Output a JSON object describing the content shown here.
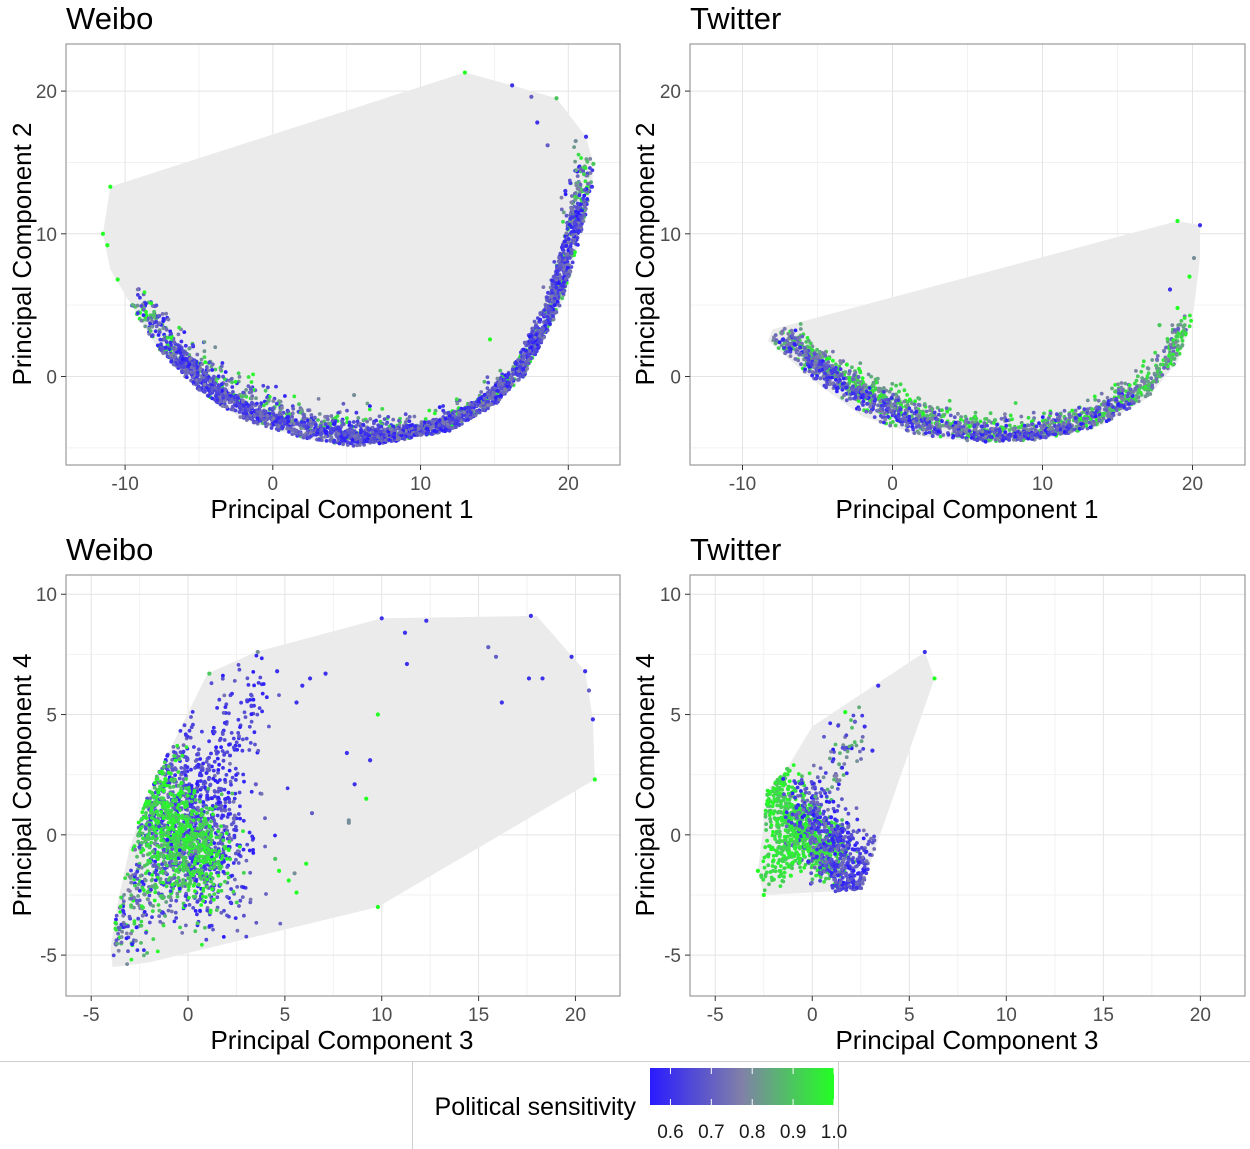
{
  "colors": {
    "low": "#2a1bff",
    "mid": "#8080a8",
    "high": "#22ff22",
    "hull_fill": "#ebebeb",
    "grid_major": "#e4e4e4",
    "grid_minor": "#f2f2f2",
    "panel_border": "#9a9a9a"
  },
  "chart_data": [
    {
      "type": "scatter",
      "title": "Weibo",
      "xlabel": "Principal Component 1",
      "ylabel": "Principal Component 2",
      "xlim": [
        -14,
        23.5
      ],
      "ylim": [
        -6.2,
        23.3
      ],
      "xticks": [
        -10,
        0,
        10,
        20
      ],
      "yticks": [
        0,
        10,
        20
      ],
      "xtick_labels": [
        "-10",
        "0",
        "10",
        "20"
      ],
      "ytick_labels": [
        "0",
        "10",
        "20"
      ],
      "hull": [
        [
          13,
          21.3
        ],
        [
          16.2,
          20.4
        ],
        [
          19.2,
          19.5
        ],
        [
          21.2,
          16.8
        ],
        [
          21.7,
          14.9
        ],
        [
          21.6,
          13.3
        ],
        [
          21,
          10.5
        ],
        [
          19.5,
          5
        ],
        [
          17,
          0
        ],
        [
          15,
          -2
        ],
        [
          12,
          -3.8
        ],
        [
          8,
          -4.6
        ],
        [
          5.5,
          -4.9
        ],
        [
          2,
          -4.3
        ],
        [
          -2,
          -3
        ],
        [
          -5,
          -1
        ],
        [
          -7.8,
          2
        ],
        [
          -9,
          4
        ],
        [
          -11,
          7.5
        ],
        [
          -11.5,
          10
        ],
        [
          -11,
          13.3
        ]
      ],
      "points": [
        [
          13,
          21.3,
          1.0
        ],
        [
          16.2,
          20.4,
          0.6
        ],
        [
          17.5,
          19.6,
          0.7
        ],
        [
          19.2,
          19.5,
          0.9
        ],
        [
          20.5,
          16.5,
          0.8
        ],
        [
          21.2,
          16.8,
          0.6
        ],
        [
          21.7,
          14.9,
          0.9
        ],
        [
          21.6,
          13.3,
          0.6
        ],
        [
          -11,
          13.3,
          1.0
        ],
        [
          -11.5,
          10,
          1.0
        ],
        [
          -11.2,
          9.2,
          1.0
        ],
        [
          -10.5,
          6.8,
          1.0
        ],
        [
          14.7,
          2.6,
          1.0
        ],
        [
          13.4,
          -2.9,
          0.7
        ],
        [
          5.5,
          -1.3,
          0.8
        ],
        [
          18.6,
          16.2,
          0.7
        ],
        [
          17.9,
          17.8,
          0.6
        ],
        [
          19.8,
          13,
          0.6
        ]
      ],
      "bands": [
        {
          "x": [
            -9.6,
            -8.2,
            -7,
            -5.5,
            -4,
            -2,
            0,
            2,
            4,
            6,
            8,
            10,
            12,
            14,
            16,
            17.5,
            18.8,
            19.8,
            20.4,
            20.8,
            21,
            21.2
          ],
          "y": [
            5.0,
            3.5,
            2.2,
            1.0,
            -0.2,
            -1.5,
            -2.6,
            -3.3,
            -3.7,
            -3.9,
            -4.0,
            -3.8,
            -3.3,
            -2.4,
            -1.0,
            0.5,
            2.5,
            5.0,
            7.5,
            10.0,
            12.5,
            14.5
          ],
          "spread": 0.7,
          "ybias": 0.4,
          "count": 1300,
          "color_range": [
            0.55,
            1.0
          ]
        },
        {
          "x": [
            -7.8,
            -6.5,
            -5,
            -3,
            -1,
            1,
            3,
            5,
            7,
            9,
            11,
            13,
            15,
            16.8,
            18.3,
            19.5,
            20.3,
            20.8,
            21
          ],
          "y": [
            1.5,
            0.5,
            -0.8,
            -2.2,
            -3.0,
            -3.6,
            -4.0,
            -4.3,
            -4.4,
            -4.3,
            -4.1,
            -3.6,
            -2.6,
            -1.0,
            1.0,
            3.5,
            6.5,
            9.5,
            12.0
          ],
          "spread": 0.5,
          "ybias": 0.3,
          "count": 1700,
          "color_range": [
            0.55,
            0.78
          ]
        }
      ]
    },
    {
      "type": "scatter",
      "title": "Twitter",
      "xlabel": "Principal Component 1",
      "ylabel": "Principal Component 2",
      "xlim": [
        -13.5,
        23.5
      ],
      "ylim": [
        -6.2,
        23.3
      ],
      "xticks": [
        -10,
        0,
        10,
        20
      ],
      "yticks": [
        0,
        10,
        20
      ],
      "xtick_labels": [
        "-10",
        "0",
        "10",
        "20"
      ],
      "ytick_labels": [
        "0",
        "10",
        "20"
      ],
      "hull": [
        [
          20.5,
          10.6
        ],
        [
          19,
          10.9
        ],
        [
          -8,
          3.3
        ],
        [
          -8.3,
          2.5
        ],
        [
          -5,
          -0.5
        ],
        [
          -2,
          -2.8
        ],
        [
          2,
          -4.2
        ],
        [
          6,
          -4.6
        ],
        [
          10,
          -4.4
        ],
        [
          14,
          -3.4
        ],
        [
          17,
          -1.5
        ],
        [
          19,
          1
        ],
        [
          20,
          4
        ],
        [
          20.5,
          8.3
        ]
      ],
      "points": [
        [
          20.5,
          10.6,
          0.6
        ],
        [
          19,
          10.9,
          1.0
        ],
        [
          20.1,
          8.3,
          0.8
        ],
        [
          18.5,
          6.1,
          0.6
        ],
        [
          19,
          4.8,
          1.0
        ],
        [
          17.8,
          3.6,
          0.9
        ],
        [
          19.8,
          7.0,
          1.0
        ]
      ],
      "bands": [
        {
          "x": [
            -7.5,
            -6,
            -4.5,
            -3,
            -1.5,
            0,
            1.5,
            3,
            5,
            7,
            9,
            11,
            13,
            15,
            16.5,
            17.8,
            18.8,
            19.4
          ],
          "y": [
            2.8,
            1.8,
            0.7,
            -0.3,
            -1.3,
            -2.1,
            -2.8,
            -3.3,
            -3.7,
            -4.0,
            -4.0,
            -3.6,
            -3.0,
            -2.0,
            -1.0,
            0.2,
            1.8,
            3.5
          ],
          "spread": 0.55,
          "ybias": 0.4,
          "count": 1300,
          "color_range": [
            0.7,
            1.0
          ]
        },
        {
          "x": [
            -7,
            -5.5,
            -4,
            -2.5,
            -1,
            0.5,
            2,
            4,
            6,
            8,
            10,
            12,
            14,
            16
          ],
          "y": [
            2.2,
            1.0,
            0.0,
            -1.2,
            -2.2,
            -2.9,
            -3.4,
            -3.8,
            -4.2,
            -4.3,
            -4.0,
            -3.5,
            -2.6,
            -1.4
          ],
          "spread": 0.45,
          "ybias": 0.2,
          "count": 700,
          "color_range": [
            0.55,
            0.8
          ]
        }
      ]
    },
    {
      "type": "scatter",
      "title": "Weibo",
      "xlabel": "Principal Component 3",
      "ylabel": "Principal Component 4",
      "xlim": [
        -6.3,
        22.3
      ],
      "ylim": [
        -6.7,
        10.8
      ],
      "xticks": [
        -5,
        0,
        5,
        10,
        15,
        20
      ],
      "yticks": [
        -5,
        0,
        5,
        10
      ],
      "xtick_labels": [
        "-5",
        "0",
        "5",
        "10",
        "15",
        "20"
      ],
      "ytick_labels": [
        "-5",
        "0",
        "5",
        "10"
      ],
      "hull": [
        [
          -3.9,
          -5.5
        ],
        [
          -2,
          -5.3
        ],
        [
          9.8,
          -3
        ],
        [
          21,
          2.3
        ],
        [
          20.9,
          4.8
        ],
        [
          20.5,
          6.8
        ],
        [
          18,
          9.1
        ],
        [
          10,
          9
        ],
        [
          3.5,
          7.6
        ],
        [
          1,
          6.7
        ],
        [
          -2,
          1.8
        ],
        [
          -3,
          -0.5
        ],
        [
          -3.6,
          -2.7
        ],
        [
          -4,
          -4.7
        ]
      ],
      "points": [
        [
          10,
          9,
          0.6
        ],
        [
          12.3,
          8.9,
          0.6
        ],
        [
          17.7,
          9.1,
          0.6
        ],
        [
          11.2,
          8.4,
          0.6
        ],
        [
          3.6,
          7.6,
          0.8
        ],
        [
          1.1,
          6.7,
          0.9
        ],
        [
          15.5,
          7.8,
          0.7
        ],
        [
          15.9,
          7.4,
          0.7
        ],
        [
          19.8,
          7.4,
          0.6
        ],
        [
          20.5,
          6.8,
          0.6
        ],
        [
          20.9,
          4.8,
          0.6
        ],
        [
          21,
          2.3,
          1.0
        ],
        [
          11.3,
          7.1,
          0.6
        ],
        [
          18.3,
          6.5,
          0.6
        ],
        [
          17.6,
          6.5,
          0.6
        ],
        [
          16.2,
          5.5,
          0.6
        ],
        [
          20.7,
          6.0,
          0.7
        ],
        [
          9.8,
          -3,
          1.0
        ],
        [
          9.8,
          5.0,
          1.0
        ],
        [
          9.4,
          3.1,
          0.6
        ],
        [
          9.2,
          1.5,
          1.0
        ],
        [
          8.3,
          0.5,
          0.8
        ],
        [
          8.3,
          0.6,
          0.8
        ],
        [
          6.4,
          0.9,
          0.7
        ],
        [
          6.1,
          -1.2,
          1.0
        ],
        [
          5.5,
          -1.6,
          0.8
        ],
        [
          5.2,
          -1.9,
          1.0
        ],
        [
          5.6,
          -2.4,
          1.0
        ],
        [
          4.7,
          -1.5,
          1.0
        ],
        [
          8.6,
          2.1,
          0.6
        ],
        [
          8.2,
          3.4,
          0.6
        ],
        [
          5.9,
          6.2,
          0.6
        ],
        [
          5.6,
          5.5,
          0.6
        ],
        [
          6.3,
          6.5,
          0.6
        ],
        [
          4.6,
          6.8,
          0.6
        ],
        [
          7.1,
          6.7,
          0.6
        ],
        [
          3.5,
          2.1,
          0.7
        ],
        [
          4.5,
          -1.0,
          0.9
        ]
      ],
      "bands": [
        {
          "x": [
            -1,
            -0.5,
            0,
            0.5,
            1,
            1.5
          ],
          "y": [
            1.5,
            1,
            0.5,
            0,
            -0.5,
            -1
          ],
          "spread": 1.6,
          "ybias": 0,
          "count": 900,
          "color_range": [
            0.55,
            0.75
          ]
        },
        {
          "x": [
            0,
            1,
            2,
            2.5,
            3,
            3.5
          ],
          "y": [
            1.8,
            2.5,
            3.5,
            4.5,
            5.2,
            6
          ],
          "spread": 0.8,
          "ybias": 0,
          "count": 160,
          "color_range": [
            0.55,
            0.7
          ]
        },
        {
          "x": [
            -2,
            -1.2,
            -0.4,
            0.4,
            1
          ],
          "y": [
            1.2,
            0.6,
            0,
            -0.6,
            -1.2
          ],
          "spread": 1.1,
          "ybias": 0,
          "count": 700,
          "color_range": [
            0.88,
            1.0
          ]
        },
        {
          "x": [
            -3.8,
            -3,
            -2.2,
            -1.4,
            -0.6
          ],
          "y": [
            -4.5,
            -3.5,
            -2.6,
            -1.8,
            -1.0
          ],
          "spread": 1.0,
          "ybias": 0,
          "count": 260,
          "color_range": [
            0.55,
            1.0
          ]
        }
      ]
    },
    {
      "type": "scatter",
      "title": "Twitter",
      "xlabel": "Principal Component 3",
      "ylabel": "Principal Component 4",
      "xlim": [
        -6.3,
        22.3
      ],
      "ylim": [
        -6.7,
        10.8
      ],
      "xticks": [
        -5,
        0,
        5,
        10,
        15,
        20
      ],
      "yticks": [
        -5,
        0,
        5,
        10
      ],
      "xtick_labels": [
        "-5",
        "0",
        "5",
        "10",
        "15",
        "20"
      ],
      "ytick_labels": [
        "-5",
        "0",
        "5",
        "10"
      ],
      "hull": [
        [
          -2.5,
          -2.5
        ],
        [
          2.5,
          -2.3
        ],
        [
          6.3,
          6.5
        ],
        [
          5.8,
          7.6
        ],
        [
          0,
          4.5
        ],
        [
          -1.5,
          2.5
        ],
        [
          -2.3,
          1.9
        ],
        [
          -2.8,
          -1.5
        ]
      ],
      "points": [
        [
          5.8,
          7.6,
          0.6
        ],
        [
          6.3,
          6.5,
          1.0
        ],
        [
          3.4,
          6.2,
          0.6
        ],
        [
          1.7,
          5.1,
          1.0
        ],
        [
          2.7,
          4.5,
          0.6
        ],
        [
          2.2,
          4.7,
          0.7
        ],
        [
          3.1,
          3.5,
          0.6
        ],
        [
          -2.5,
          -2.5,
          1.0
        ],
        [
          -2.8,
          -1.5,
          1.0
        ],
        [
          2.3,
          -2.2,
          0.6
        ]
      ],
      "bands": [
        {
          "x": [
            -2,
            -1.2,
            -0.4,
            0.4,
            1.2
          ],
          "y": [
            1.6,
            0.9,
            0.2,
            -0.5,
            -1.2
          ],
          "spread": 0.7,
          "ybias": 0,
          "count": 700,
          "color_range": [
            0.88,
            1.0
          ]
        },
        {
          "x": [
            -0.5,
            0.3,
            1.1,
            1.9,
            2.4
          ],
          "y": [
            1.2,
            0.3,
            -0.6,
            -1.3,
            -1.8
          ],
          "spread": 0.75,
          "ybias": 0,
          "count": 550,
          "color_range": [
            0.55,
            0.75
          ]
        },
        {
          "x": [
            0.5,
            1.2,
            1.8,
            2.3
          ],
          "y": [
            2.2,
            3,
            3.8,
            4.4
          ],
          "spread": 0.5,
          "ybias": 0,
          "count": 60,
          "color_range": [
            0.55,
            0.9
          ]
        },
        {
          "x": [
            -2.4,
            -1.6,
            -0.8
          ],
          "y": [
            -1.6,
            -1.0,
            -0.4
          ],
          "spread": 0.5,
          "ybias": 0,
          "count": 120,
          "color_range": [
            0.9,
            1.0
          ]
        }
      ]
    }
  ],
  "legend": {
    "title": "Political sensitivity",
    "min": 0.55,
    "max": 1.0,
    "tick_values": [
      0.6,
      0.7,
      0.8,
      0.9,
      1.0
    ],
    "tick_labels": [
      "0.6",
      "0.7",
      "0.8",
      "0.9",
      "1.0"
    ],
    "position": "bottom"
  }
}
